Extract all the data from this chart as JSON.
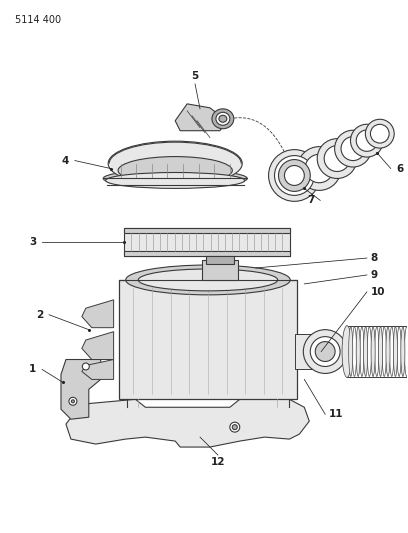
{
  "title_code": "5114 400",
  "bg_color": "#ffffff",
  "line_color": "#3a3a3a",
  "label_color": "#222222",
  "fig_width": 4.08,
  "fig_height": 5.33,
  "dpi": 100
}
